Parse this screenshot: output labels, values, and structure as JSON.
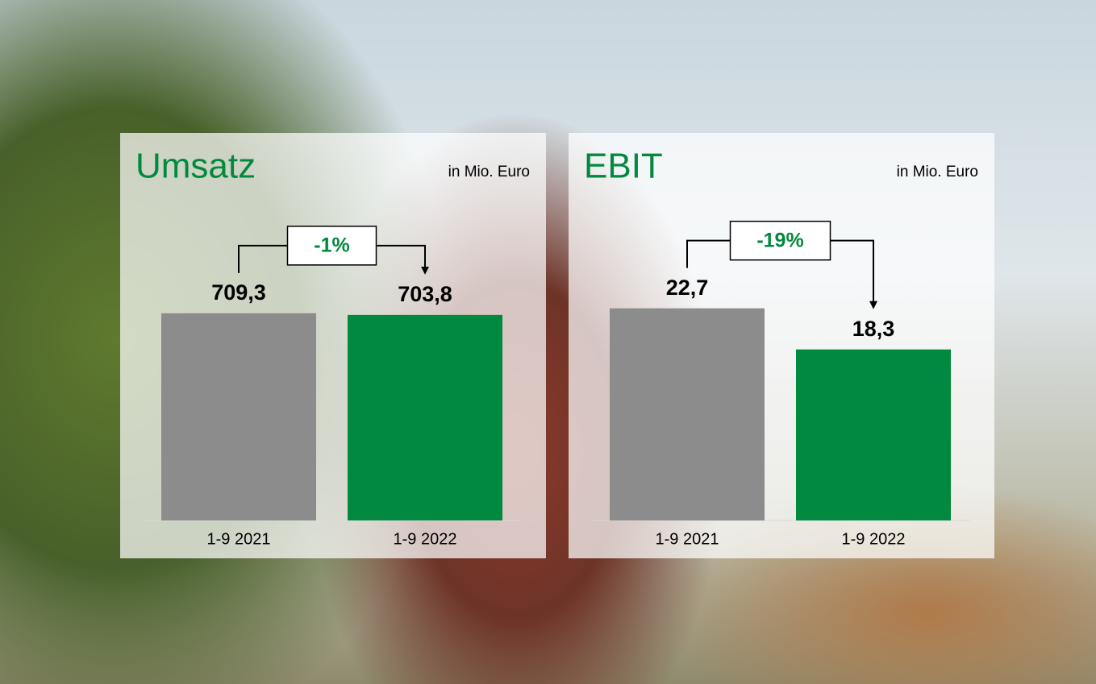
{
  "chart_data": [
    {
      "type": "bar",
      "title": "Umsatz",
      "subtitle": "in Mio. Euro",
      "title_color": "#00893f",
      "categories": [
        "1-9 2021",
        "1-9 2022"
      ],
      "values": [
        709.3,
        703.8
      ],
      "value_labels": [
        "709,3",
        "703,8"
      ],
      "colors": [
        "#8c8c8c",
        "#00893f"
      ],
      "annotation": "-1%",
      "ylim": [
        0,
        800
      ]
    },
    {
      "type": "bar",
      "title": "EBIT",
      "subtitle": "in Mio. Euro",
      "title_color": "#00893f",
      "categories": [
        "1-9 2021",
        "1-9 2022"
      ],
      "values": [
        22.7,
        18.3
      ],
      "value_labels": [
        "22,7",
        "18,3"
      ],
      "colors": [
        "#8c8c8c",
        "#00893f"
      ],
      "annotation": "-19%",
      "ylim": [
        0,
        25
      ]
    }
  ]
}
